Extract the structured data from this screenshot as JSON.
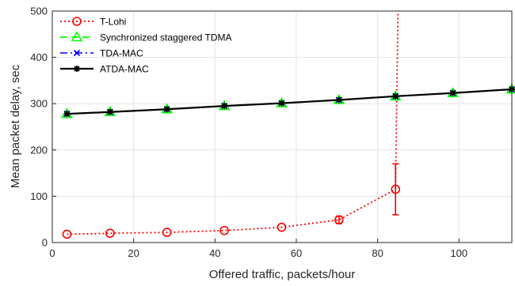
{
  "chart_data": {
    "type": "line",
    "title": "",
    "xlabel": "Offered traffic, packets/hour",
    "ylabel": "Mean packet delay, sec",
    "xlim": [
      0,
      113
    ],
    "ylim": [
      0,
      500
    ],
    "xticks": [
      0,
      20,
      40,
      60,
      80,
      100
    ],
    "yticks": [
      0,
      100,
      200,
      300,
      400,
      500
    ],
    "grid": true,
    "legend_position": "top-left",
    "series": [
      {
        "name": "T-Lohi",
        "color": "#ff0000",
        "style": "dotted",
        "marker": "circle",
        "x": [
          3.6,
          14.2,
          28.2,
          42.3,
          56.4,
          70.5,
          84.4
        ],
        "y": [
          18,
          20,
          22,
          26,
          33,
          49,
          115
        ],
        "error": [
          null,
          null,
          null,
          null,
          null,
          8,
          55
        ],
        "extension": {
          "x": [
            84.4,
            85.0
          ],
          "y": [
            115,
            500
          ]
        }
      },
      {
        "name": "Synchronized staggered TDMA",
        "color": "#00ff00",
        "style": "dashed",
        "marker": "triangle",
        "x": [
          3.6,
          14.2,
          28.2,
          42.3,
          56.4,
          70.5,
          84.4,
          98.5,
          113
        ],
        "y": [
          278,
          282,
          288,
          295,
          301,
          308,
          316,
          323,
          331
        ]
      },
      {
        "name": "TDA-MAC",
        "color": "#0000ff",
        "style": "dashdot",
        "marker": "x",
        "x": [
          3.6,
          14.2,
          28.2,
          42.3,
          56.4,
          70.5,
          84.4,
          98.5,
          113
        ],
        "y": [
          278,
          282,
          288,
          295,
          301,
          308,
          316,
          323,
          331
        ]
      },
      {
        "name": "ATDA-MAC",
        "color": "#000000",
        "style": "solid",
        "marker": "star",
        "x": [
          3.6,
          14.2,
          28.2,
          42.3,
          56.4,
          70.5,
          84.4,
          98.5,
          113
        ],
        "y": [
          278,
          282,
          288,
          295,
          301,
          308,
          316,
          323,
          331
        ]
      }
    ]
  }
}
